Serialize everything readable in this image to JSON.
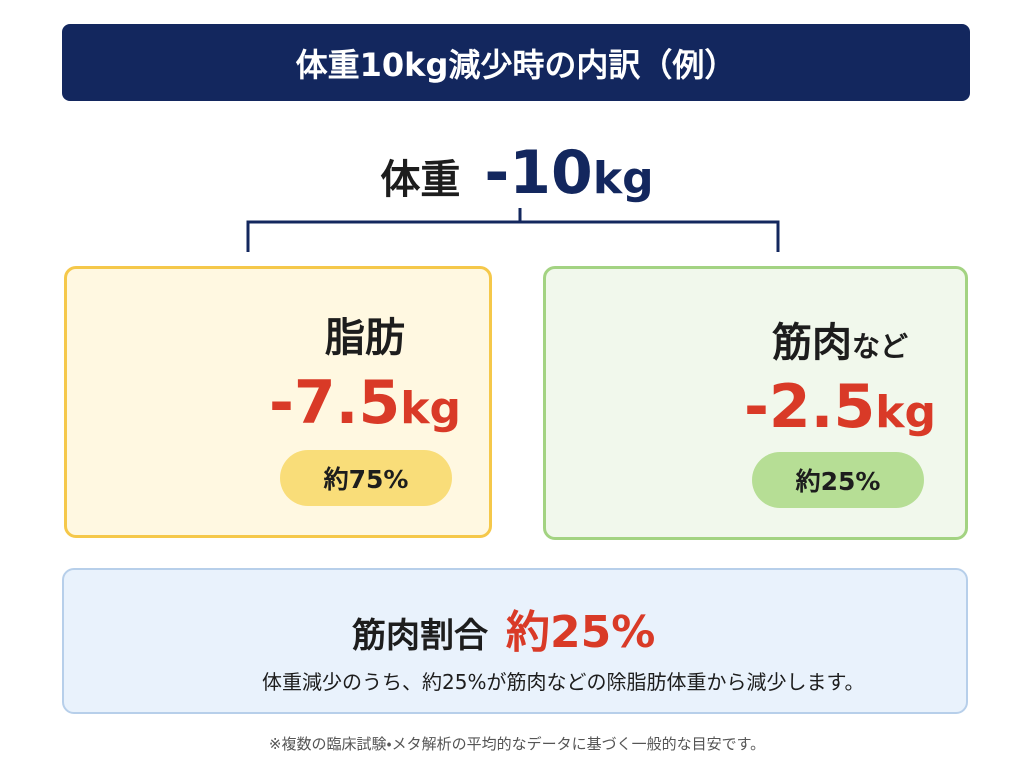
{
  "header": {
    "title": "体重10kg減少時の内訳（例）"
  },
  "total": {
    "label": "体重",
    "value": "-10",
    "unit": "kg"
  },
  "fat": {
    "name": "脂肪",
    "value": "-7.5",
    "unit": "kg",
    "share": "約75%"
  },
  "muscle": {
    "name": "筋肉",
    "name_suffix": "など",
    "value": "-2.5",
    "unit": "kg",
    "share": "約25%"
  },
  "summary": {
    "heading": "筋肉割合",
    "highlight": "約25%",
    "note": "体重減少のうち、約25%が筋肉などの除脂肪体重から減少します。"
  },
  "footnote": "※複数の臨床試験・メタ解析の平均的なデータに基づく一般的な目安です。"
}
